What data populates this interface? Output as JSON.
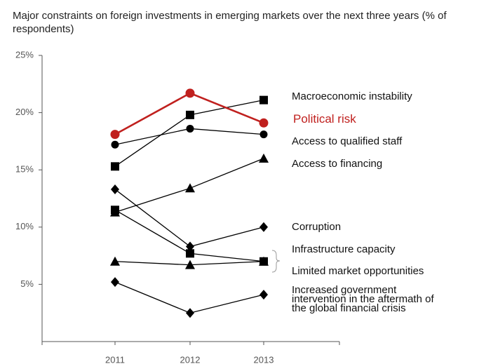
{
  "chart_data": {
    "type": "line",
    "title": "Major constraints on foreign investments in emerging markets over the next three years (% of respondents)",
    "categories": [
      "2011",
      "2012",
      "2013"
    ],
    "ylim": [
      0,
      25
    ],
    "yticks": [
      {
        "value": 5,
        "label": "5%"
      },
      {
        "value": 10,
        "label": "10%"
      },
      {
        "value": 15,
        "label": "15%"
      },
      {
        "value": 20,
        "label": "20%"
      },
      {
        "value": 25,
        "label": "25%"
      }
    ],
    "series": [
      {
        "name": "Macroeconomic instability",
        "color": "#000000",
        "marker": "square",
        "values": [
          15.3,
          19.8,
          21.1
        ]
      },
      {
        "name": "Political risk",
        "color": "#c0201e",
        "marker": "circle",
        "values": [
          18.1,
          21.7,
          19.1
        ]
      },
      {
        "name": "Access to qualified staff",
        "color": "#000000",
        "marker": "circle",
        "values": [
          17.2,
          18.6,
          18.1
        ]
      },
      {
        "name": "Access to financing",
        "color": "#000000",
        "marker": "triangle",
        "values": [
          11.3,
          13.4,
          16.0
        ]
      },
      {
        "name": "Corruption",
        "color": "#000000",
        "marker": "diamond",
        "values": [
          13.3,
          8.3,
          10.0
        ]
      },
      {
        "name": "Infrastructure capacity",
        "color": "#000000",
        "marker": "square",
        "values": [
          11.5,
          7.7,
          7.0
        ]
      },
      {
        "name": "Limited market opportunities",
        "color": "#000000",
        "marker": "triangle",
        "values": [
          7.0,
          6.7,
          7.0
        ]
      },
      {
        "name": "Increased government intervention in the aftermath of the global financial crisis",
        "color": "#000000",
        "marker": "diamond",
        "values": [
          5.2,
          2.5,
          4.1
        ]
      }
    ]
  }
}
